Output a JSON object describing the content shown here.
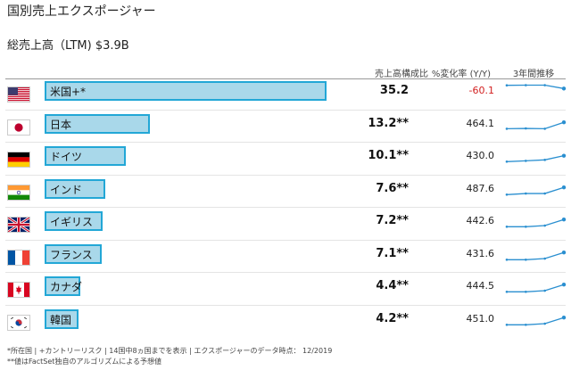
{
  "title": "国別売上エクスポージャー",
  "subtitle": "総売上高（LTM) $3.9B",
  "headers": {
    "share": "売上高構成比",
    "change": "%変化率 (Y/Y)",
    "trend": "3年間推移"
  },
  "colors": {
    "bar_fill": "#a9d8ea",
    "bar_border": "#22a7d6",
    "negative": "#d21f1f",
    "sparkline": "#2a8fd0"
  },
  "rows": [
    {
      "country": "米国+*",
      "flag_icon": "us-flag-icon",
      "share_label": "35.2",
      "share_value": 35.2,
      "change": "-60.1",
      "negative": true,
      "trend": [
        0.85,
        0.86,
        0.86,
        0.65
      ]
    },
    {
      "country": "日本",
      "flag_icon": "japan-flag-icon",
      "share_label": "13.2**",
      "share_value": 13.2,
      "change": "464.1",
      "negative": false,
      "trend": [
        0.2,
        0.22,
        0.2,
        0.6
      ]
    },
    {
      "country": "ドイツ",
      "flag_icon": "germany-flag-icon",
      "share_label": "10.1**",
      "share_value": 10.1,
      "change": "430.0",
      "negative": false,
      "trend": [
        0.15,
        0.2,
        0.26,
        0.52
      ]
    },
    {
      "country": "インド",
      "flag_icon": "india-flag-icon",
      "share_label": "7.6**",
      "share_value": 7.6,
      "change": "487.6",
      "negative": false,
      "trend": [
        0.15,
        0.22,
        0.22,
        0.6
      ]
    },
    {
      "country": "イギリス",
      "flag_icon": "uk-flag-icon",
      "share_label": "7.2**",
      "share_value": 7.2,
      "change": "442.6",
      "negative": false,
      "trend": [
        0.15,
        0.15,
        0.22,
        0.6
      ]
    },
    {
      "country": "フランス",
      "flag_icon": "france-flag-icon",
      "share_label": "7.1**",
      "share_value": 7.1,
      "change": "431.6",
      "negative": false,
      "trend": [
        0.15,
        0.15,
        0.22,
        0.6
      ]
    },
    {
      "country": "カナダ",
      "flag_icon": "canada-flag-icon",
      "share_label": "4.4**",
      "share_value": 4.4,
      "change": "444.5",
      "negative": false,
      "trend": [
        0.15,
        0.15,
        0.22,
        0.6
      ]
    },
    {
      "country": "韓国",
      "flag_icon": "korea-flag-icon",
      "share_label": "4.2**",
      "share_value": 4.2,
      "change": "451.0",
      "negative": false,
      "trend": [
        0.15,
        0.15,
        0.22,
        0.6
      ]
    }
  ],
  "footnotes": [
    "*所在国 | +カントリーリスク | 14国中8ヵ国までを表示 | エクスポージャーのデータ時点： 12/2019",
    "**値はFactSet独自のアルゴリズムによる予想値"
  ]
}
